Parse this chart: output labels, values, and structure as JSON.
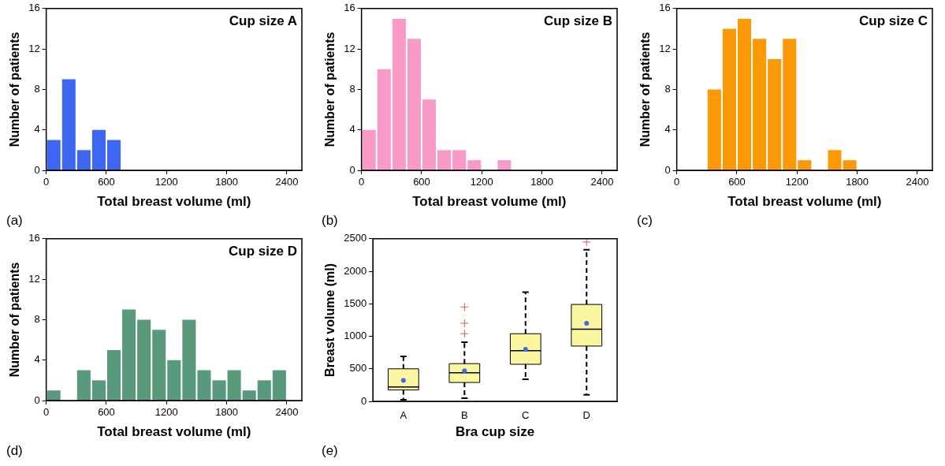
{
  "chart_data": [
    {
      "type": "histogram",
      "title": "Cup size A",
      "xlabel": "Total breast volume (ml)",
      "ylabel": "Number of patients",
      "annotations": [
        "(a)"
      ],
      "bins": [
        0,
        150,
        300,
        450,
        600,
        750
      ],
      "values": [
        3,
        9,
        2,
        4,
        3
      ],
      "color": "#3d67f0",
      "xlim": [
        0,
        2550
      ],
      "xticks": [
        0,
        600,
        1200,
        1800,
        2400
      ],
      "ylim": [
        0,
        16
      ],
      "yticks": [
        0,
        4,
        8,
        12,
        16
      ]
    },
    {
      "type": "histogram",
      "title": "Cup size B",
      "xlabel": "Total breast volume (ml)",
      "ylabel": "Number of patients",
      "annotations": [
        "(b)"
      ],
      "bins": [
        0,
        150,
        300,
        450,
        600,
        750,
        900,
        1050,
        1200,
        1350,
        1500
      ],
      "values": [
        4,
        10,
        15,
        13,
        7,
        2,
        2,
        1,
        0,
        1
      ],
      "color": "#f99ac8",
      "xlim": [
        0,
        2550
      ],
      "xticks": [
        0,
        600,
        1200,
        1800,
        2400
      ],
      "ylim": [
        0,
        16
      ],
      "yticks": [
        0,
        4,
        8,
        12,
        16
      ]
    },
    {
      "type": "histogram",
      "title": "Cup size C",
      "xlabel": "Total breast volume (ml)",
      "ylabel": "Number of patients",
      "annotations": [
        "(c)"
      ],
      "bins": [
        300,
        450,
        600,
        750,
        900,
        1050,
        1200,
        1350,
        1500,
        1650,
        1800
      ],
      "values": [
        8,
        14,
        15,
        13,
        11,
        13,
        1,
        0,
        2,
        1
      ],
      "color": "#fb9a06",
      "xlim": [
        0,
        2550
      ],
      "xticks": [
        0,
        600,
        1200,
        1800,
        2400
      ],
      "ylim": [
        0,
        16
      ],
      "yticks": [
        0,
        4,
        8,
        12,
        16
      ]
    },
    {
      "type": "histogram",
      "title": "Cup size D",
      "xlabel": "Total breast volume (ml)",
      "ylabel": "Number of patients",
      "annotations": [
        "(d)"
      ],
      "bins": [
        0,
        150,
        300,
        450,
        600,
        750,
        900,
        1050,
        1200,
        1350,
        1500,
        1650,
        1800,
        1950,
        2100,
        2250,
        2400
      ],
      "values": [
        1,
        0,
        3,
        2,
        5,
        9,
        8,
        7,
        4,
        8,
        3,
        2,
        3,
        1,
        2,
        3
      ],
      "color": "#5a9a7c",
      "xlim": [
        0,
        2550
      ],
      "xticks": [
        0,
        600,
        1200,
        1800,
        2400
      ],
      "ylim": [
        0,
        16
      ],
      "yticks": [
        0,
        4,
        8,
        12,
        16
      ]
    },
    {
      "type": "box",
      "xlabel": "Bra cup size",
      "ylabel": "Breast volume (ml)",
      "annotations": [
        "(e)"
      ],
      "categories": [
        "A",
        "B",
        "C",
        "D"
      ],
      "color": "#fbf7a0",
      "ylim": [
        0,
        2500
      ],
      "yticks": [
        0,
        500,
        1000,
        1500,
        2000,
        2500
      ],
      "boxes": [
        {
          "low": 25,
          "q1": 175,
          "median": 220,
          "q3": 500,
          "high": 690,
          "mean": 320
        },
        {
          "low": 50,
          "q1": 290,
          "median": 440,
          "q3": 580,
          "high": 910,
          "mean": 470,
          "outliers": [
            1040,
            1200,
            1450
          ]
        },
        {
          "low": 340,
          "q1": 570,
          "median": 780,
          "q3": 1040,
          "high": 1680,
          "mean": 800
        },
        {
          "low": 100,
          "q1": 850,
          "median": 1110,
          "q3": 1490,
          "high": 2330,
          "mean": 1200,
          "outliers": [
            2450
          ]
        }
      ]
    }
  ]
}
